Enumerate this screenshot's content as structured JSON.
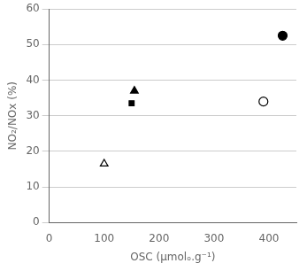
{
  "chart_data": {
    "type": "scatter",
    "x_label": "OSC (μmolₒ.g⁻¹)",
    "y_label": "NO₂/NOx (%)",
    "series": [
      {
        "x": [
          100
        ],
        "values": [
          16.5
        ],
        "marker": "triangle-open",
        "color": "black"
      },
      {
        "x": [
          150
        ],
        "values": [
          33.5
        ],
        "marker": "square",
        "color": "black"
      },
      {
        "x": [
          155
        ],
        "values": [
          37
        ],
        "marker": "triangle",
        "color": "black"
      },
      {
        "x": [
          390
        ],
        "values": [
          34
        ],
        "marker": "circle-open",
        "color": "black"
      },
      {
        "x": [
          425
        ],
        "values": [
          52.5
        ],
        "marker": "circle",
        "color": "black"
      }
    ],
    "xlim": [
      0,
      450
    ],
    "ylim": [
      0,
      60
    ],
    "xticks": [
      0,
      100,
      200,
      300,
      400
    ],
    "yticks": [
      0,
      10,
      20,
      30,
      40,
      50,
      60
    ],
    "grid": "y",
    "legend": false
  }
}
